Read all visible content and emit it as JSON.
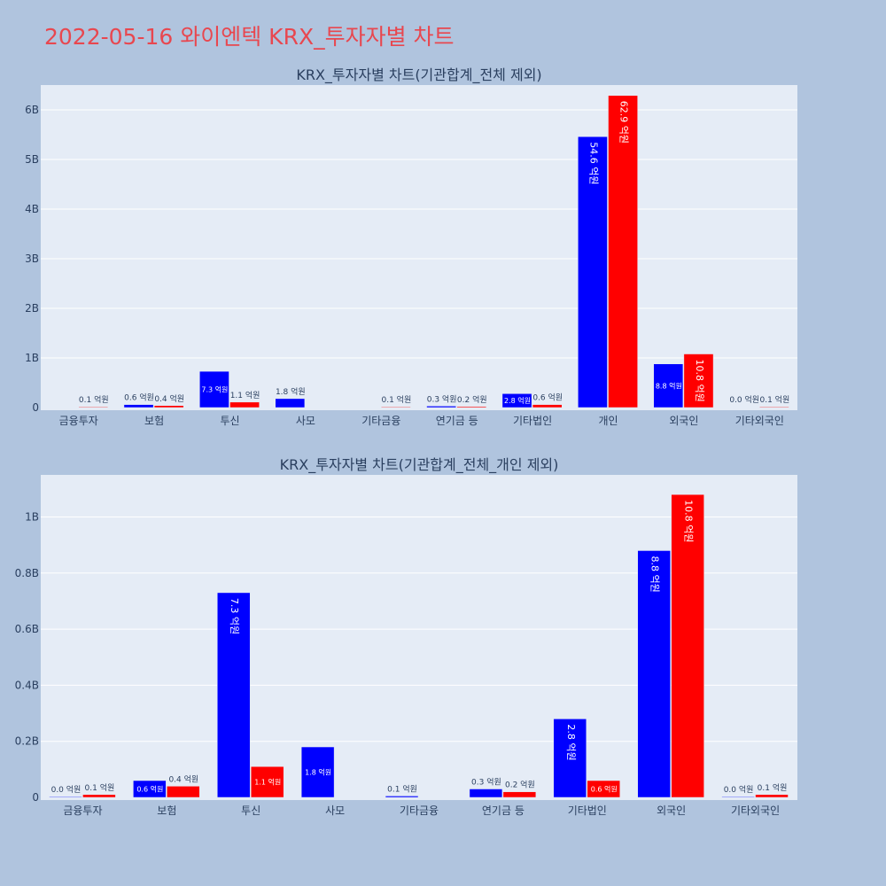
{
  "page_title": "2022-05-16 와이엔텍 KRX_투자자별 차트",
  "colors": {
    "series_a": "#0000ff",
    "series_b": "#ff0000",
    "plot_bg": "#e5ecf6",
    "grid": "#ffffff",
    "page_bg": "#b0c4de"
  },
  "chart_data": [
    {
      "type": "bar",
      "title": "KRX_투자자별 차트(기관합계_전체 제외)",
      "categories": [
        "금융투자",
        "보험",
        "투신",
        "사모",
        "기타금융",
        "연기금 등",
        "기타법인",
        "개인",
        "외국인",
        "기타외국인"
      ],
      "ylim": [
        0,
        6500000000
      ],
      "yticks": [
        0,
        1000000000,
        2000000000,
        3000000000,
        4000000000,
        5000000000,
        6000000000
      ],
      "ytick_labels": [
        "0",
        "1B",
        "2B",
        "3B",
        "4B",
        "5B",
        "6B"
      ],
      "grid": true,
      "series": [
        {
          "color": "#0000ff",
          "values": [
            null,
            60000000,
            730000000,
            180000000,
            null,
            30000000,
            280000000,
            5460000000,
            880000000,
            null
          ],
          "labels": [
            "",
            "0.6 억원",
            "7.3 억원",
            "1.8 억원",
            "",
            "0.3 억원",
            "2.8 억원",
            "54.6 억원",
            "8.8 억원",
            "0.0 억원"
          ]
        },
        {
          "color": "#ff0000",
          "values": [
            10000000,
            40000000,
            110000000,
            null,
            10000000,
            20000000,
            60000000,
            6290000000,
            1080000000,
            10000000
          ],
          "labels": [
            "0.1 억원",
            "0.4 억원",
            "1.1 억원",
            "",
            "0.1 억원",
            "0.2 억원",
            "0.6 억원",
            "62.9 억원",
            "10.8 억원",
            "0.1 억원"
          ]
        }
      ]
    },
    {
      "type": "bar",
      "title": "KRX_투자자별 차트(기관합계_전체_개인 제외)",
      "categories": [
        "금융투자",
        "보험",
        "투신",
        "사모",
        "기타금융",
        "연기금 등",
        "기타법인",
        "외국인",
        "기타외국인"
      ],
      "ylim": [
        0,
        1150000000
      ],
      "yticks": [
        0,
        200000000,
        400000000,
        600000000,
        800000000,
        1000000000
      ],
      "ytick_labels": [
        "0",
        "0.2B",
        "0.4B",
        "0.6B",
        "0.8B",
        "1B"
      ],
      "grid": true,
      "series": [
        {
          "color": "#0000ff",
          "values": [
            0,
            60000000,
            730000000,
            180000000,
            5000000,
            30000000,
            280000000,
            880000000,
            0
          ],
          "labels": [
            "0.0 억원",
            "0.6 억원",
            "7.3 억원",
            "1.8 억원",
            "0.1 억원",
            "0.3 억원",
            "2.8 억원",
            "8.8 억원",
            "0.0 억원"
          ]
        },
        {
          "color": "#ff0000",
          "values": [
            10000000,
            40000000,
            110000000,
            null,
            null,
            20000000,
            60000000,
            1080000000,
            10000000
          ],
          "labels": [
            "0.1 억원",
            "0.4 억원",
            "1.1 억원",
            "",
            "",
            "0.2 억원",
            "0.6 억원",
            "10.8 억원",
            "0.1 억원"
          ]
        }
      ]
    }
  ]
}
